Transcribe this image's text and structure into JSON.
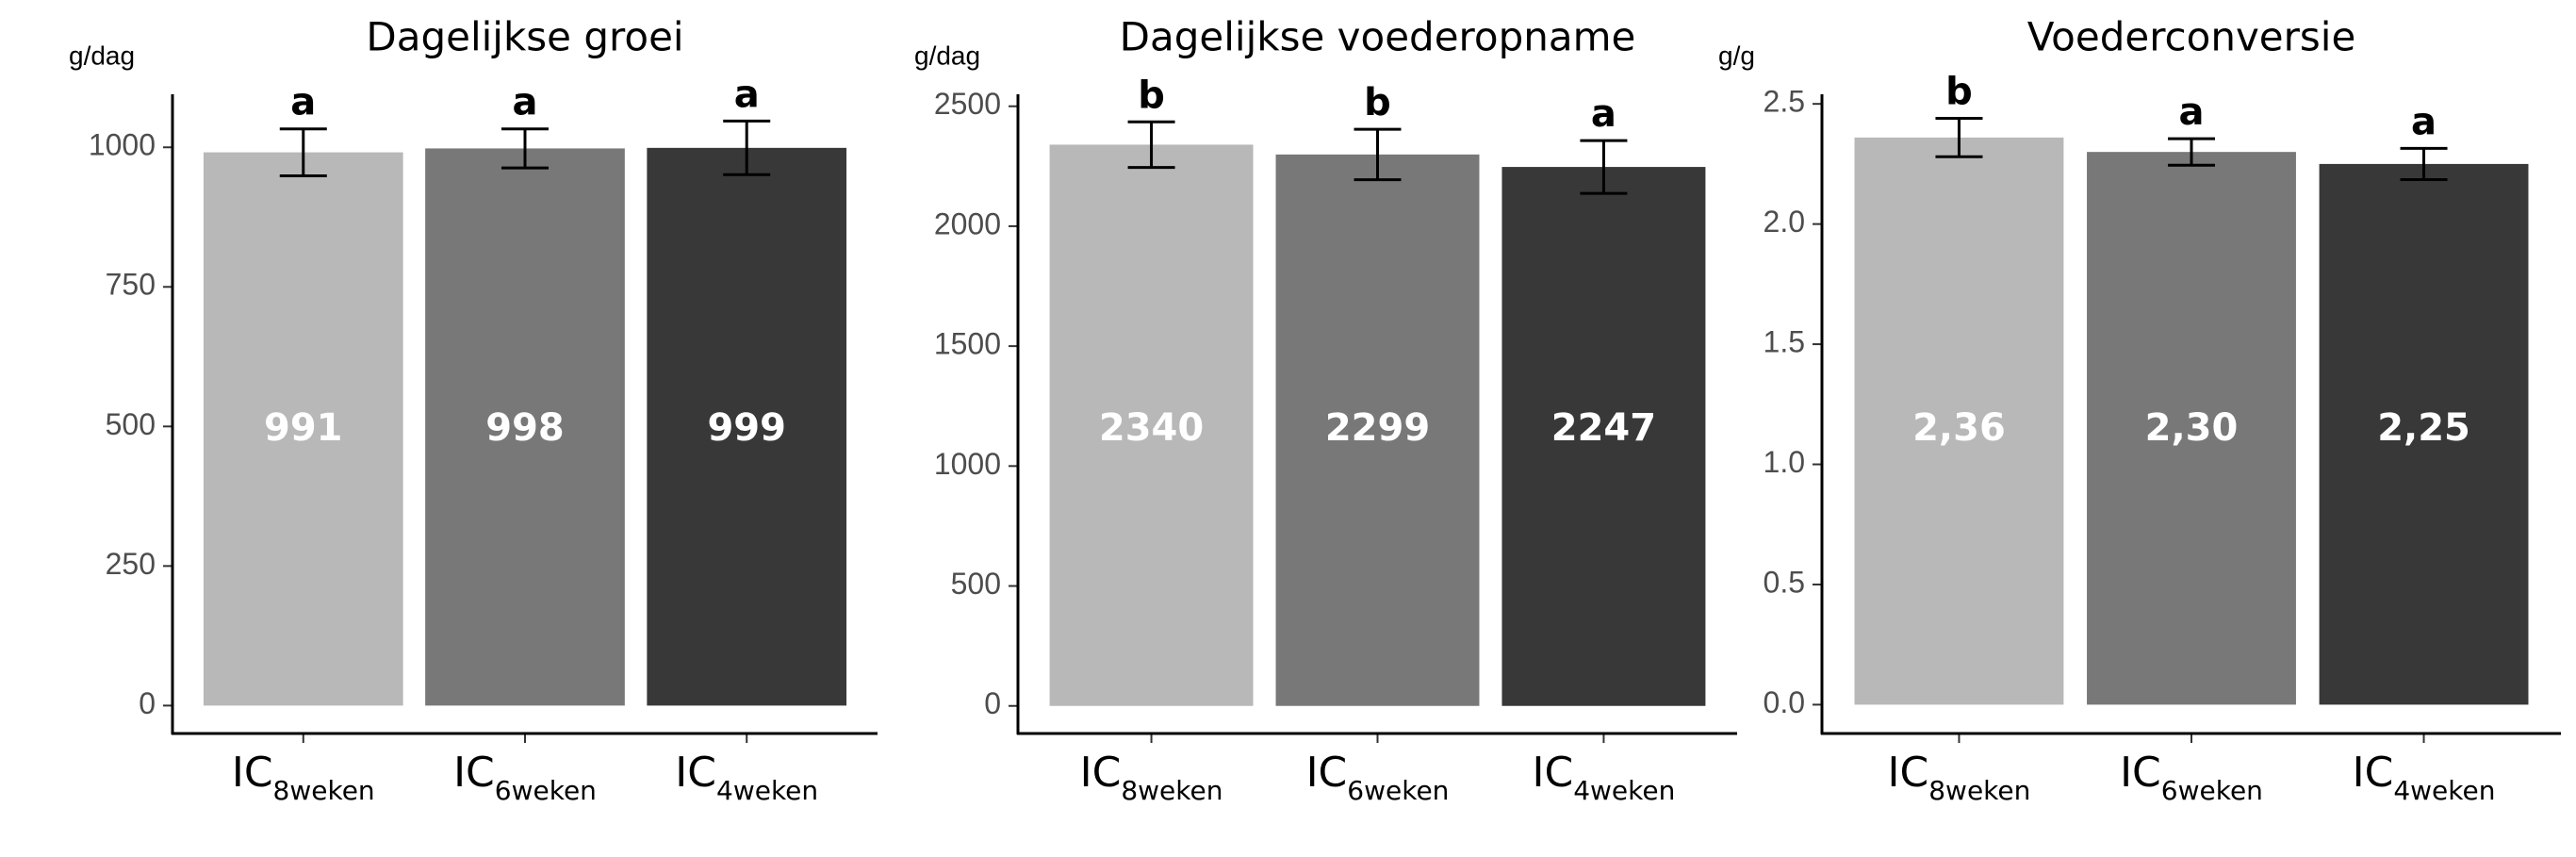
{
  "chart_data": [
    {
      "type": "bar",
      "title": "Dagelijkse groei",
      "ylabel": "g/dag",
      "categories": [
        [
          "IC",
          "8weken"
        ],
        [
          "IC",
          "6weken"
        ],
        [
          "IC",
          "4weken"
        ]
      ],
      "values": [
        991,
        998,
        999
      ],
      "errors": [
        42,
        35,
        48
      ],
      "letters": [
        "a",
        "a",
        "a"
      ],
      "colors": [
        "#b8b8b8",
        "#787878",
        "#383838"
      ],
      "ylim": [
        -50,
        1095
      ],
      "yticks": [
        0,
        250,
        500,
        750,
        1000
      ],
      "grid": false
    },
    {
      "type": "bar",
      "title": "Dagelijkse voederopname",
      "ylabel": "g/dag",
      "categories": [
        [
          "IC",
          "8weken"
        ],
        [
          "IC",
          "6weken"
        ],
        [
          "IC",
          "4weken"
        ]
      ],
      "values": [
        2340,
        2299,
        2247
      ],
      "errors": [
        95,
        105,
        110
      ],
      "letters": [
        "b",
        "b",
        "a"
      ],
      "colors": [
        "#b8b8b8",
        "#787878",
        "#383838"
      ],
      "ylim": [
        -115,
        2550
      ],
      "yticks": [
        0,
        500,
        1000,
        1500,
        2000,
        2500
      ],
      "grid": false
    },
    {
      "type": "bar",
      "title": "Voederconversie",
      "ylabel": "g/g",
      "categories": [
        [
          "IC",
          "8weken"
        ],
        [
          "IC",
          "6weken"
        ],
        [
          "IC",
          "4weken"
        ]
      ],
      "values": [
        2.36,
        2.3,
        2.25
      ],
      "value_labels": [
        "2,36",
        "2,30",
        "2,25"
      ],
      "errors": [
        0.08,
        0.055,
        0.065
      ],
      "letters": [
        "b",
        "a",
        "a"
      ],
      "colors": [
        "#b8b8b8",
        "#787878",
        "#383838"
      ],
      "ylim": [
        -0.12,
        2.54
      ],
      "yticks": [
        {
          "value": 0,
          "label": "0.0"
        },
        0.5,
        {
          "value": 1,
          "label": "1.0"
        },
        1.5,
        {
          "value": 2,
          "label": "2.0"
        },
        2.5
      ],
      "grid": false
    }
  ]
}
